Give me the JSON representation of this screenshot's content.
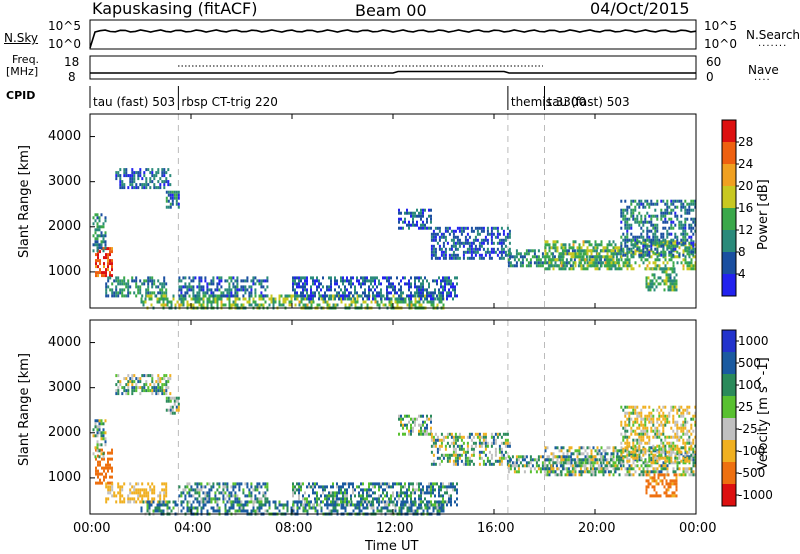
{
  "header": {
    "radar": "Kapuskasing (fitACF)",
    "beam": "Beam 00",
    "date": "04/Oct/2015"
  },
  "top_panel": {
    "left_label": "N.Sky",
    "left_ticks": [
      "10^5",
      "10^0"
    ],
    "right_ticks": [
      "10^5",
      "10^0"
    ],
    "right_label": "N.Search"
  },
  "freq_panel": {
    "label_line1": "Freq.",
    "label_line2": "[MHz]",
    "left_ticks": [
      "18",
      "8"
    ],
    "right_ticks": [
      "60",
      "0"
    ],
    "right_label": "Nave"
  },
  "cpid": {
    "label": "CPID",
    "segments": [
      {
        "name": "tau (fast) 503",
        "start_hour": 0.0
      },
      {
        "name": "rbsp CT-trig 220",
        "start_hour": 3.5
      },
      {
        "name": "themis 3300",
        "start_hour": 16.55
      },
      {
        "name": "tau (fast) 503",
        "start_hour": 18.0
      }
    ]
  },
  "x_axis": {
    "label": "Time UT",
    "ticks": [
      "00:00",
      "04:00",
      "08:00",
      "12:00",
      "16:00",
      "20:00",
      "00:00"
    ]
  },
  "power_panel": {
    "ylabel": "Slant Range [km]",
    "yticks": [
      "1000",
      "2000",
      "3000",
      "4000"
    ],
    "colorbar_label": "Power [dB]",
    "colorbar_ticks": [
      "4",
      "8",
      "12",
      "16",
      "20",
      "24",
      "28"
    ],
    "colors": [
      "#2222ee",
      "#1a4fa0",
      "#2a8a7a",
      "#3aa84a",
      "#c8c820",
      "#f0a020",
      "#ee6010",
      "#dd1010"
    ]
  },
  "velocity_panel": {
    "ylabel": "Slant Range [km]",
    "yticks": [
      "1000",
      "2000",
      "3000",
      "4000"
    ],
    "colorbar_label": "Velocity [m s^-1]",
    "colorbar_ticks": [
      "1000",
      "500",
      "100",
      "25",
      "-25",
      "-100",
      "-500",
      "-1000"
    ],
    "colors": [
      "#2233cc",
      "#1a5aa0",
      "#2a8a5a",
      "#58c030",
      "#c0c0c0",
      "#f0b020",
      "#ee7010",
      "#dd1010"
    ]
  },
  "chart_data": [
    {
      "type": "heatmap",
      "title": "Kapuskasing (fitACF) Beam 00 04/Oct/2015",
      "variable": "Power",
      "unit": "dB",
      "xlabel": "Time UT",
      "ylabel": "Slant Range [km]",
      "xlim_hours": [
        0,
        24
      ],
      "ylim": [
        200,
        4500
      ],
      "clim": [
        0,
        30
      ],
      "grid": false,
      "regions": [
        {
          "t0": 0.2,
          "t1": 0.9,
          "r0": 900,
          "r1": 1550,
          "value": 26
        },
        {
          "t0": 0.1,
          "t1": 0.6,
          "r0": 1500,
          "r1": 2300,
          "value": 10
        },
        {
          "t0": 0.6,
          "t1": 3.0,
          "r0": 450,
          "r1": 900,
          "value": 10
        },
        {
          "t0": 1.0,
          "t1": 3.2,
          "r0": 2900,
          "r1": 3300,
          "value": 6
        },
        {
          "t0": 3.0,
          "t1": 3.5,
          "r0": 2450,
          "r1": 2800,
          "value": 8
        },
        {
          "t0": 2.0,
          "t1": 14.0,
          "r0": 200,
          "r1": 500,
          "value": 14
        },
        {
          "t0": 3.5,
          "t1": 7.0,
          "r0": 450,
          "r1": 900,
          "value": 7
        },
        {
          "t0": 8.0,
          "t1": 14.5,
          "r0": 400,
          "r1": 900,
          "value": 6
        },
        {
          "t0": 12.2,
          "t1": 13.5,
          "r0": 2000,
          "r1": 2400,
          "value": 6
        },
        {
          "t0": 13.5,
          "t1": 16.6,
          "r0": 1300,
          "r1": 2000,
          "value": 6
        },
        {
          "t0": 16.55,
          "t1": 21.0,
          "r0": 1150,
          "r1": 1500,
          "value": 10
        },
        {
          "t0": 18.0,
          "t1": 24.0,
          "r0": 1100,
          "r1": 1700,
          "value": 14
        },
        {
          "t0": 21.0,
          "t1": 24.0,
          "r0": 1400,
          "r1": 2600,
          "value": 8
        },
        {
          "t0": 22.0,
          "t1": 23.2,
          "r0": 600,
          "r1": 1100,
          "value": 12
        }
      ]
    },
    {
      "type": "heatmap",
      "title": "Kapuskasing (fitACF) Beam 00 04/Oct/2015",
      "variable": "Velocity",
      "unit": "m s^-1",
      "xlabel": "Time UT",
      "ylabel": "Slant Range [km]",
      "xlim_hours": [
        0,
        24
      ],
      "ylim": [
        200,
        4500
      ],
      "clim": [
        -1000,
        1000
      ],
      "grid": false,
      "regions": [
        {
          "t0": 0.2,
          "t1": 0.9,
          "r0": 900,
          "r1": 1650,
          "value": -700
        },
        {
          "t0": 0.1,
          "t1": 0.6,
          "r0": 1500,
          "r1": 2300,
          "value": 0
        },
        {
          "t0": 0.6,
          "t1": 3.0,
          "r0": 450,
          "r1": 900,
          "value": -200
        },
        {
          "t0": 1.0,
          "t1": 3.2,
          "r0": 2900,
          "r1": 3300,
          "value": 0
        },
        {
          "t0": 3.0,
          "t1": 3.5,
          "r0": 2450,
          "r1": 2800,
          "value": 0
        },
        {
          "t0": 2.0,
          "t1": 14.0,
          "r0": 200,
          "r1": 500,
          "value": 100
        },
        {
          "t0": 3.5,
          "t1": 7.0,
          "r0": 450,
          "r1": 900,
          "value": 60
        },
        {
          "t0": 8.0,
          "t1": 14.5,
          "r0": 400,
          "r1": 900,
          "value": 80
        },
        {
          "t0": 12.2,
          "t1": 13.5,
          "r0": 2000,
          "r1": 2400,
          "value": 0
        },
        {
          "t0": 13.5,
          "t1": 16.6,
          "r0": 1300,
          "r1": 2000,
          "value": 0
        },
        {
          "t0": 16.55,
          "t1": 21.0,
          "r0": 1150,
          "r1": 1500,
          "value": 0
        },
        {
          "t0": 18.0,
          "t1": 24.0,
          "r0": 1100,
          "r1": 1700,
          "value": 0
        },
        {
          "t0": 21.0,
          "t1": 24.0,
          "r0": 1400,
          "r1": 2600,
          "value": -100
        },
        {
          "t0": 22.0,
          "t1": 23.2,
          "r0": 600,
          "r1": 1100,
          "value": -600
        }
      ]
    }
  ]
}
